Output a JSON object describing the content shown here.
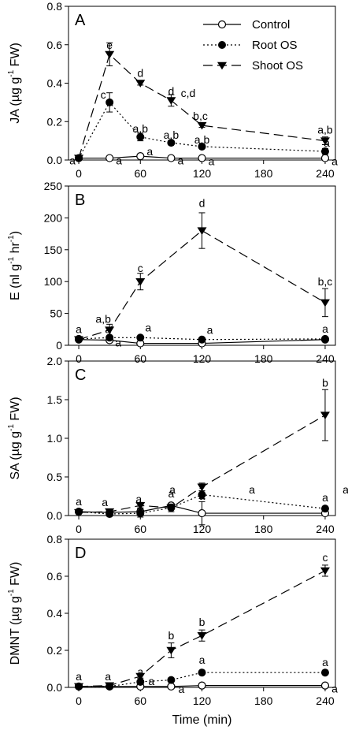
{
  "legend": {
    "items": [
      {
        "label": "Control",
        "style": "solid",
        "marker": "open-circle"
      },
      {
        "label": "Root OS",
        "style": "dotted",
        "marker": "filled-circle"
      },
      {
        "label": "Shoot OS",
        "style": "dashed",
        "marker": "filled-triangle-down"
      }
    ],
    "placement": "top-right of panel A"
  },
  "x_axis": {
    "label": "Time (min)",
    "ticks": [
      0,
      60,
      120,
      180,
      240
    ],
    "xlim": [
      -10,
      250
    ]
  },
  "chart_data": [
    {
      "type": "line",
      "panel_letter": "A",
      "ylabel": "JA (µg g-1 FW)",
      "ylabel_parts": {
        "pre": "JA (µg g",
        "sup": "-1",
        "post": " FW)"
      },
      "ylim": [
        0,
        0.8
      ],
      "yticks": [
        "0.0",
        "0.2",
        "0.4",
        "0.6",
        "0.8"
      ],
      "grid": false,
      "x": [
        0,
        30,
        60,
        90,
        120,
        240
      ],
      "series": [
        {
          "name": "Control",
          "values": [
            0.01,
            0.01,
            0.02,
            0.01,
            0.01,
            0.01
          ],
          "errors": [
            0,
            0,
            0,
            0,
            0,
            0
          ],
          "letters": [
            "a",
            "a",
            "a",
            "a",
            "a",
            "a"
          ]
        },
        {
          "name": "Root OS",
          "values": [
            0.01,
            0.3,
            0.12,
            0.09,
            0.07,
            0.045
          ],
          "errors": [
            0,
            0.05,
            0.02,
            0.01,
            0.01,
            0.015
          ],
          "letters": [
            "",
            "c",
            "a,b",
            "a,b",
            "a,b",
            "a"
          ]
        },
        {
          "name": "Shoot OS",
          "values": [
            0.01,
            0.55,
            0.4,
            0.31,
            0.18,
            0.1
          ],
          "errors": [
            0,
            0.06,
            0.01,
            0.03,
            0.01,
            0.02
          ],
          "letters": [
            "",
            "e",
            "d",
            "d",
            "b,c",
            "a,b"
          ]
        }
      ],
      "extra_labels": [
        "c,d"
      ]
    },
    {
      "type": "line",
      "panel_letter": "B",
      "ylabel": "E (nl g-1 hr-1)",
      "ylabel_parts": {
        "pre": "E (nl g",
        "sup": "-1",
        "mid": " hr",
        "sup2": "-1",
        "post": ")"
      },
      "ylim": [
        0,
        250
      ],
      "yticks": [
        "0",
        "50",
        "100",
        "150",
        "200",
        "250"
      ],
      "grid": false,
      "x": [
        0,
        30,
        60,
        120,
        240
      ],
      "series": [
        {
          "name": "Control",
          "values": [
            9,
            8,
            3,
            3,
            9
          ],
          "errors": [
            0,
            0,
            0,
            0,
            0
          ],
          "letters": [
            "a",
            "a",
            "",
            "",
            ""
          ]
        },
        {
          "name": "Root OS",
          "values": [
            10,
            12,
            12,
            9,
            10
          ],
          "errors": [
            0,
            0,
            0,
            0,
            0
          ],
          "letters": [
            "",
            "a",
            "a",
            "a",
            "a"
          ]
        },
        {
          "name": "Shoot OS",
          "values": [
            9,
            24,
            100,
            180,
            67
          ],
          "errors": [
            0,
            9,
            13,
            28,
            22
          ],
          "letters": [
            "",
            "a,b",
            "c",
            "d",
            "b,c"
          ]
        }
      ]
    },
    {
      "type": "line",
      "panel_letter": "C",
      "ylabel": "SA (µg g-1 FW)",
      "ylabel_parts": {
        "pre": "SA (µg g",
        "sup": "-1",
        "post": " FW)"
      },
      "ylim": [
        0,
        2.0
      ],
      "yticks": [
        "0.0",
        "0.5",
        "1.0",
        "1.5",
        "2.0"
      ],
      "grid": false,
      "x": [
        0,
        30,
        60,
        90,
        120,
        240
      ],
      "series": [
        {
          "name": "Control",
          "values": [
            0.05,
            0.04,
            0.05,
            0.13,
            0.03,
            0.03
          ],
          "errors": [
            0,
            0,
            0.05,
            0,
            0.15,
            0
          ],
          "letters": [
            "a",
            "a",
            "a",
            "",
            "a",
            ""
          ]
        },
        {
          "name": "Root OS",
          "values": [
            0.05,
            0.02,
            0.03,
            0.1,
            0.27,
            0.09
          ],
          "errors": [
            0,
            0,
            0.05,
            0,
            0.05,
            0
          ],
          "letters": [
            "",
            "",
            "",
            "",
            "",
            "a"
          ]
        },
        {
          "name": "Shoot OS",
          "values": [
            0.04,
            0.05,
            0.13,
            0.1,
            0.37,
            1.3
          ],
          "errors": [
            0,
            0,
            0.04,
            0.05,
            0.05,
            0.33
          ],
          "letters": [
            "",
            "",
            "",
            "a",
            "",
            "b"
          ]
        }
      ],
      "extra_labels": [
        "a",
        "a",
        "a"
      ]
    },
    {
      "type": "line",
      "panel_letter": "D",
      "ylabel": "DMNT (µg g-1 FW)",
      "ylabel_parts": {
        "pre": "DMNT (µg g",
        "sup": "-1",
        "post": " FW)"
      },
      "ylim": [
        0,
        0.8
      ],
      "yticks": [
        "0.0",
        "0.2",
        "0.4",
        "0.6",
        "0.8"
      ],
      "grid": false,
      "x": [
        0,
        30,
        60,
        90,
        120,
        240
      ],
      "series": [
        {
          "name": "Control",
          "values": [
            0.005,
            0.005,
            0.005,
            0.005,
            0.01,
            0.01
          ],
          "errors": [
            0,
            0,
            0,
            0,
            0,
            0
          ],
          "letters": [
            "a",
            "a",
            "a",
            "a",
            "",
            "a"
          ]
        },
        {
          "name": "Root OS",
          "values": [
            0.005,
            0.005,
            0.03,
            0.04,
            0.08,
            0.08
          ],
          "errors": [
            0,
            0,
            0,
            0,
            0.01,
            0
          ],
          "letters": [
            "",
            "",
            "a",
            "",
            "a",
            "a"
          ]
        },
        {
          "name": "Shoot OS",
          "values": [
            0.005,
            0.01,
            0.06,
            0.2,
            0.28,
            0.63
          ],
          "errors": [
            0,
            0,
            0.01,
            0.04,
            0.03,
            0.03
          ],
          "letters": [
            "",
            "",
            "",
            "b",
            "b",
            "c"
          ]
        }
      ]
    }
  ]
}
